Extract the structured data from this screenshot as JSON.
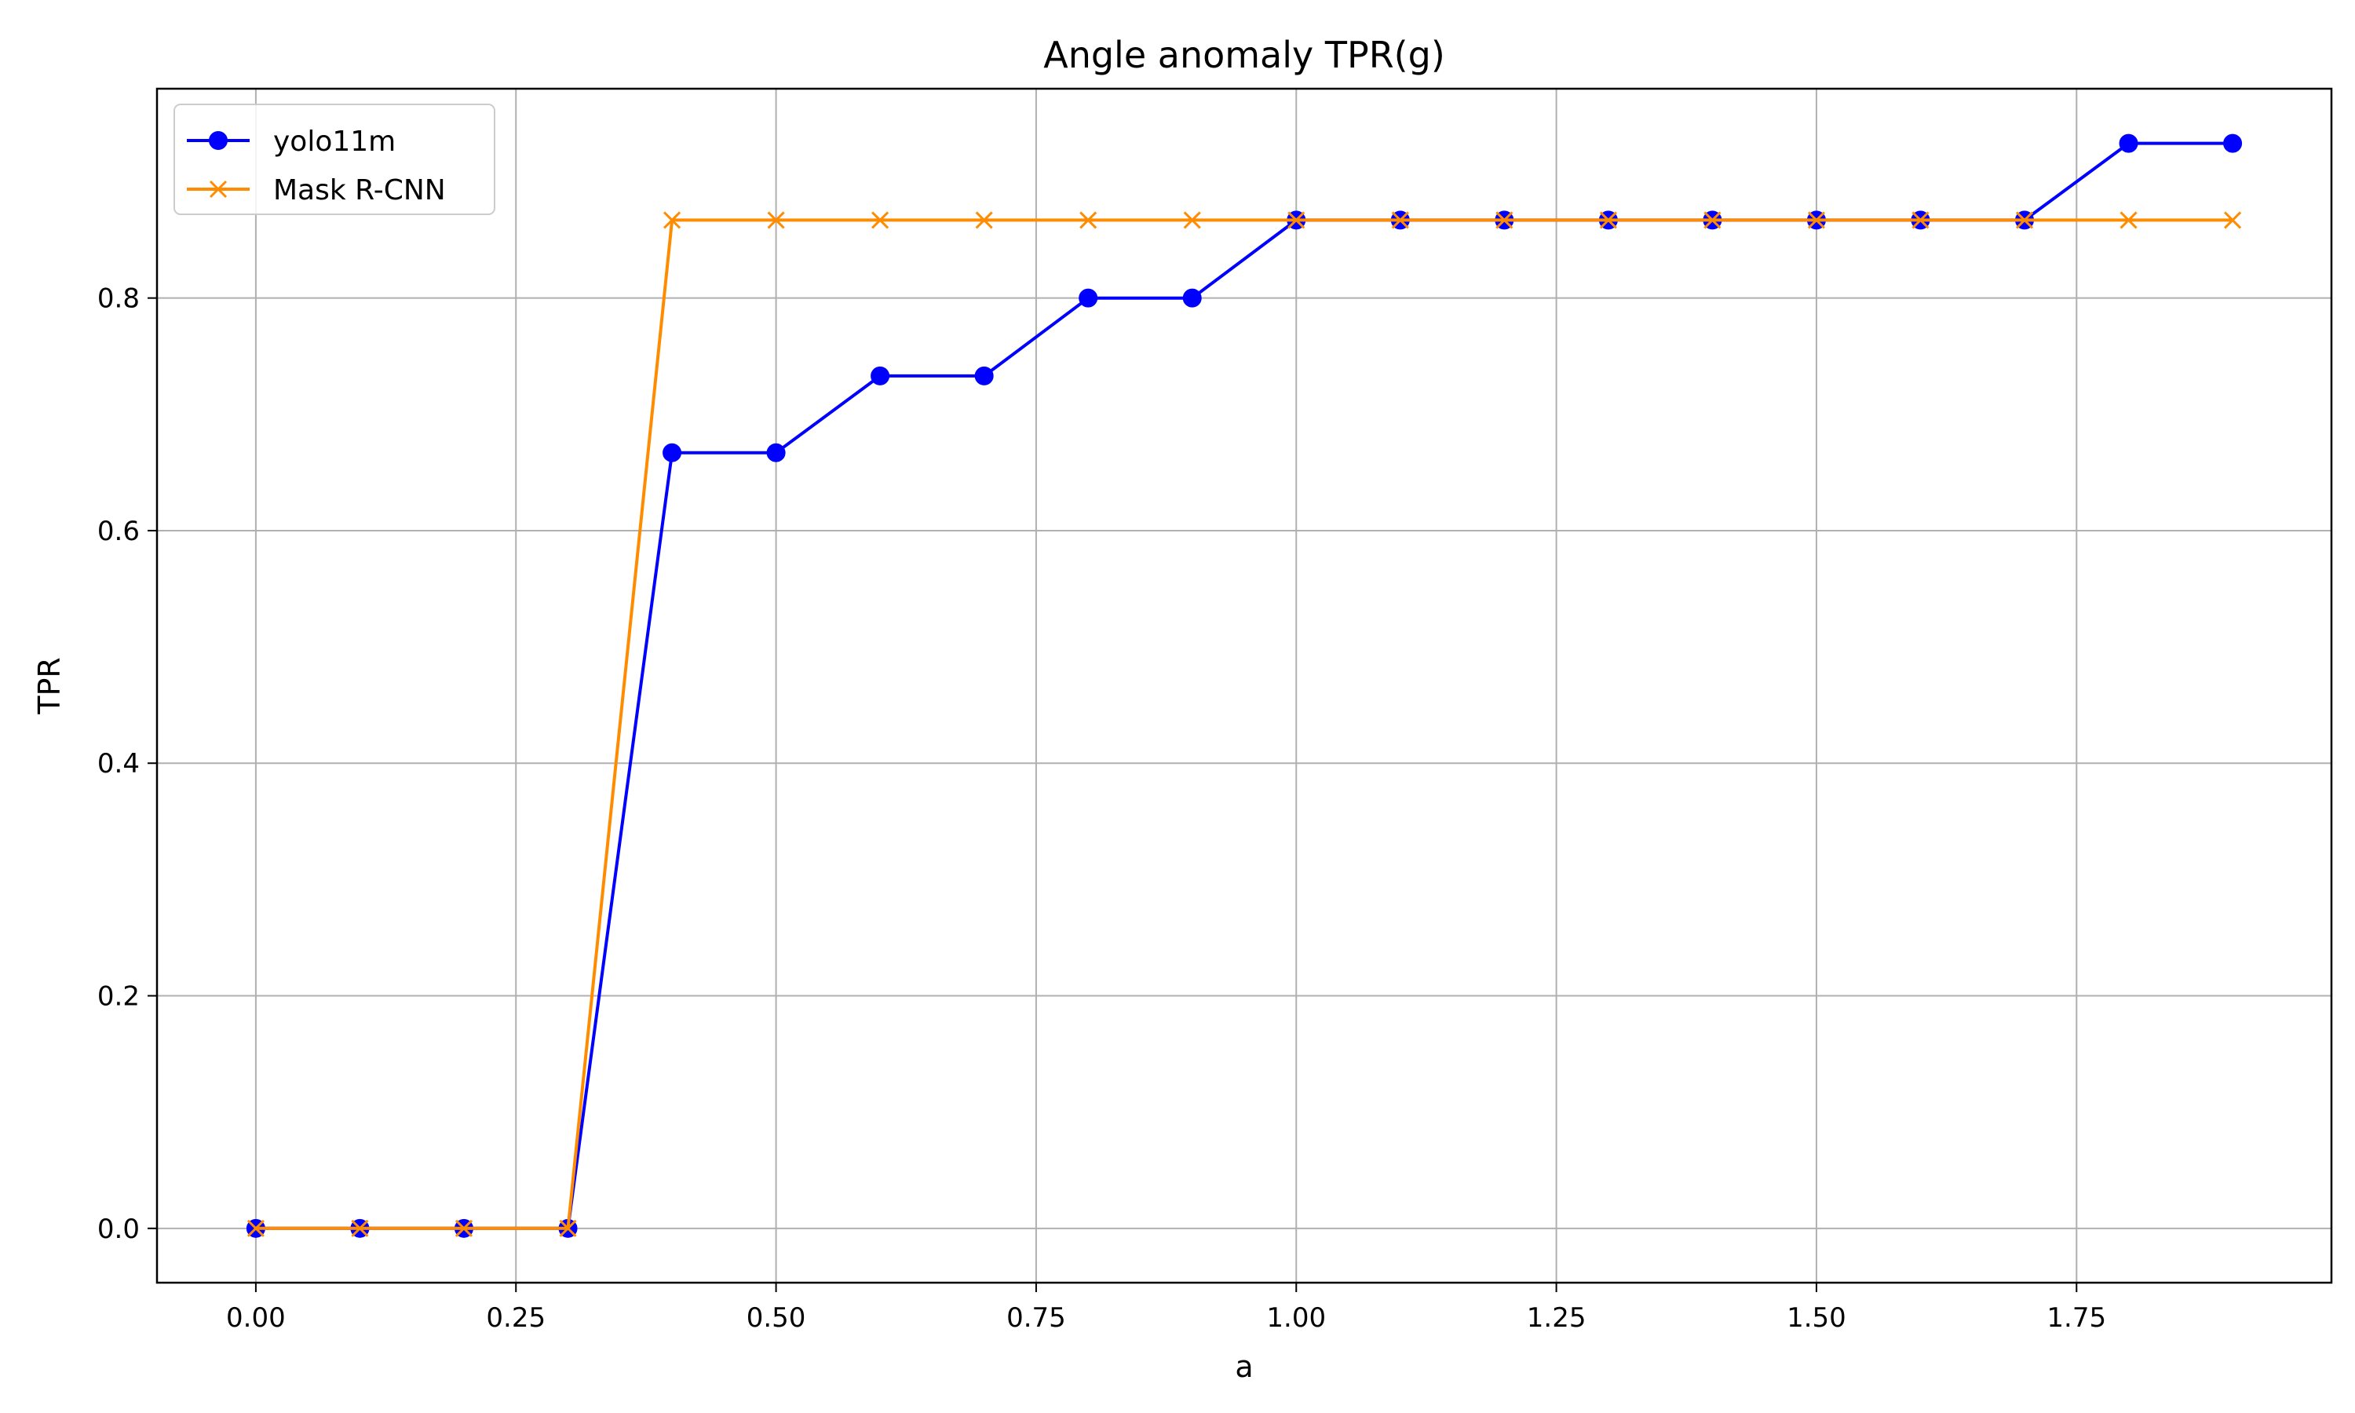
{
  "chart_data": {
    "type": "line",
    "title": "Angle anomaly TPR(g)",
    "xlabel": "a",
    "ylabel": "TPR",
    "xlim": [
      -0.095,
      1.995
    ],
    "ylim": [
      -0.0467,
      0.98
    ],
    "xticks": [
      0.0,
      0.25,
      0.5,
      0.75,
      1.0,
      1.25,
      1.5,
      1.75
    ],
    "xtick_labels": [
      "0.00",
      "0.25",
      "0.50",
      "0.75",
      "1.00",
      "1.25",
      "1.50",
      "1.75"
    ],
    "yticks": [
      0.0,
      0.2,
      0.4,
      0.6,
      0.8
    ],
    "ytick_labels": [
      "0.0",
      "0.2",
      "0.4",
      "0.6",
      "0.8"
    ],
    "grid": true,
    "legend_position": "upper-left",
    "x": [
      0.0,
      0.1,
      0.2,
      0.3,
      0.4,
      0.5,
      0.6,
      0.7,
      0.8,
      0.9,
      1.0,
      1.1,
      1.2,
      1.3,
      1.4,
      1.5,
      1.6,
      1.7,
      1.8,
      1.9
    ],
    "series": [
      {
        "name": "yolo11m",
        "color": "#0000ff",
        "marker": "circle",
        "values": [
          0.0,
          0.0,
          0.0,
          0.0,
          0.667,
          0.667,
          0.733,
          0.733,
          0.8,
          0.8,
          0.867,
          0.867,
          0.867,
          0.867,
          0.867,
          0.867,
          0.867,
          0.867,
          0.933,
          0.933
        ]
      },
      {
        "name": "Mask R-CNN",
        "color": "#ff8c00",
        "marker": "x",
        "values": [
          0.0,
          0.0,
          0.0,
          0.0,
          0.867,
          0.867,
          0.867,
          0.867,
          0.867,
          0.867,
          0.867,
          0.867,
          0.867,
          0.867,
          0.867,
          0.867,
          0.867,
          0.867,
          0.867,
          0.867
        ]
      }
    ]
  }
}
